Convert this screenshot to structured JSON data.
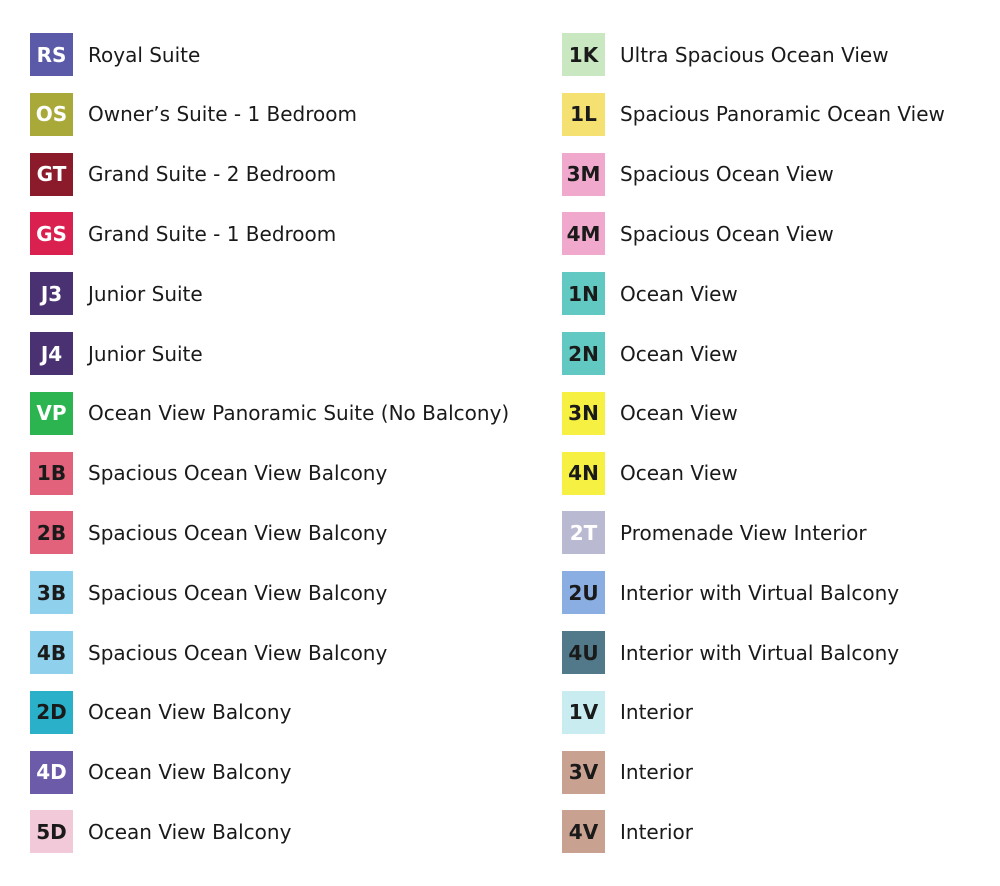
{
  "columns": [
    {
      "items": [
        {
          "code": "RS",
          "label": "Royal Suite",
          "color": "#5b5aa9",
          "code_color": "#ffffff"
        },
        {
          "code": "OS",
          "label": "Owner’s Suite - 1 Bedroom",
          "color": "#a9a93a",
          "code_color": "#ffffff"
        },
        {
          "code": "GT",
          "label": "Grand Suite - 2 Bedroom",
          "color": "#8b1b2b",
          "code_color": "#ffffff"
        },
        {
          "code": "GS",
          "label": "Grand Suite - 1 Bedroom",
          "color": "#d9204f",
          "code_color": "#ffffff"
        },
        {
          "code": "J3",
          "label": "Junior Suite",
          "color": "#4a3172",
          "code_color": "#ffffff"
        },
        {
          "code": "J4",
          "label": "Junior Suite",
          "color": "#4a3172",
          "code_color": "#ffffff"
        },
        {
          "code": "VP",
          "label": "Ocean View Panoramic Suite (No Balcony)",
          "color": "#2cb450",
          "code_color": "#ffffff"
        },
        {
          "code": "1B",
          "label": "Spacious Ocean View Balcony",
          "color": "#e2617b",
          "code_color": "#1a1a1a"
        },
        {
          "code": "2B",
          "label": "Spacious Ocean View Balcony",
          "color": "#e2617b",
          "code_color": "#1a1a1a"
        },
        {
          "code": "3B",
          "label": "Spacious Ocean View Balcony",
          "color": "#8fd1ec",
          "code_color": "#1a1a1a"
        },
        {
          "code": "4B",
          "label": "Spacious Ocean View Balcony",
          "color": "#8fd1ec",
          "code_color": "#1a1a1a"
        },
        {
          "code": "2D",
          "label": "Ocean View Balcony",
          "color": "#2ab1c9",
          "code_color": "#1a1a1a"
        },
        {
          "code": "4D",
          "label": "Ocean View Balcony",
          "color": "#6b5ba9",
          "code_color": "#ffffff"
        },
        {
          "code": "5D",
          "label": "Ocean View Balcony",
          "color": "#f1c9d9",
          "code_color": "#1a1a1a"
        }
      ]
    },
    {
      "items": [
        {
          "code": "1K",
          "label": "Ultra Spacious Ocean View",
          "color": "#c9e8c1",
          "code_color": "#1a1a1a"
        },
        {
          "code": "1L",
          "label": "Spacious Panoramic Ocean View",
          "color": "#f5e072",
          "code_color": "#1a1a1a"
        },
        {
          "code": "3M",
          "label": "Spacious Ocean View",
          "color": "#f0a9cc",
          "code_color": "#1a1a1a"
        },
        {
          "code": "4M",
          "label": "Spacious Ocean View",
          "color": "#f0a9cc",
          "code_color": "#1a1a1a"
        },
        {
          "code": "1N",
          "label": "Ocean View",
          "color": "#61c9c1",
          "code_color": "#1a1a1a"
        },
        {
          "code": "2N",
          "label": "Ocean View",
          "color": "#61c9c1",
          "code_color": "#1a1a1a"
        },
        {
          "code": "3N",
          "label": "Ocean View",
          "color": "#f5f042",
          "code_color": "#1a1a1a"
        },
        {
          "code": "4N",
          "label": "Ocean View",
          "color": "#f5f042",
          "code_color": "#1a1a1a"
        },
        {
          "code": "2T",
          "label": "Promenade View Interior",
          "color": "#b9b9d1",
          "code_color": "#ffffff"
        },
        {
          "code": "2U",
          "label": "Interior with Virtual Balcony",
          "color": "#8aaee1",
          "code_color": "#1a1a1a"
        },
        {
          "code": "4U",
          "label": "Interior with Virtual Balcony",
          "color": "#517989",
          "code_color": "#1a1a1a"
        },
        {
          "code": "1V",
          "label": "Interior",
          "color": "#c9ecf0",
          "code_color": "#1a1a1a"
        },
        {
          "code": "3V",
          "label": "Interior",
          "color": "#c9a191",
          "code_color": "#1a1a1a"
        },
        {
          "code": "4V",
          "label": "Interior",
          "color": "#c9a191",
          "code_color": "#1a1a1a"
        }
      ]
    }
  ]
}
